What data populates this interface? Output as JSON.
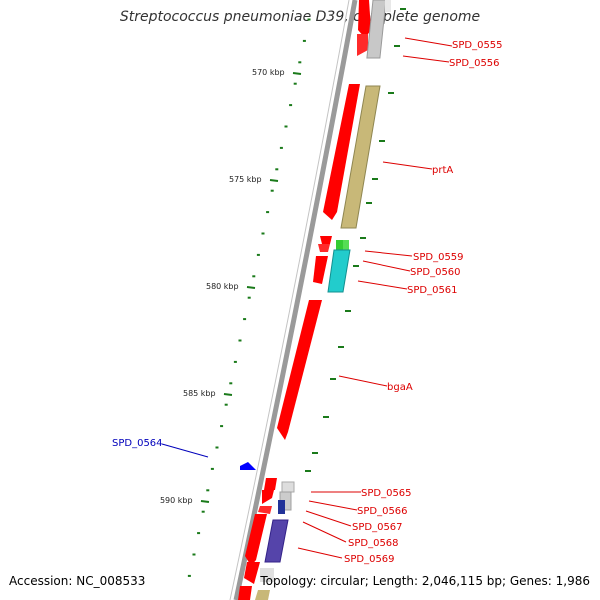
{
  "title": "Streptococcus pneumoniae D39, complete genome",
  "footer": {
    "accession": "Accession: NC_008533",
    "summary": "Topology: circular; Length: 2,046,115 bp; Genes: 1,986"
  },
  "colors": {
    "backbone": "#808080",
    "forward_gene": "#ff0000",
    "label_red": "#dd0000",
    "label_blue": "#0000bb",
    "tick_green": "#1a7a1a"
  },
  "scale": {
    "unit": "kbp",
    "ticks": [
      {
        "value": 570,
        "label": "570 kbp"
      },
      {
        "value": 575,
        "label": "575 kbp"
      },
      {
        "value": 580,
        "label": "580 kbp"
      },
      {
        "value": 585,
        "label": "585 kbp"
      },
      {
        "value": 590,
        "label": "590 kbp"
      }
    ]
  },
  "gene_labels": [
    {
      "name": "SPD_0555",
      "color": "red"
    },
    {
      "name": "SPD_0556",
      "color": "red"
    },
    {
      "name": "prtA",
      "color": "red"
    },
    {
      "name": "SPD_0559",
      "color": "red"
    },
    {
      "name": "SPD_0560",
      "color": "red"
    },
    {
      "name": "SPD_0561",
      "color": "red"
    },
    {
      "name": "bgaA",
      "color": "red"
    },
    {
      "name": "SPD_0564",
      "color": "blue"
    },
    {
      "name": "SPD_0565",
      "color": "red"
    },
    {
      "name": "SPD_0566",
      "color": "red"
    },
    {
      "name": "SPD_0567",
      "color": "red"
    },
    {
      "name": "SPD_0568",
      "color": "red"
    },
    {
      "name": "SPD_0569",
      "color": "red"
    }
  ]
}
